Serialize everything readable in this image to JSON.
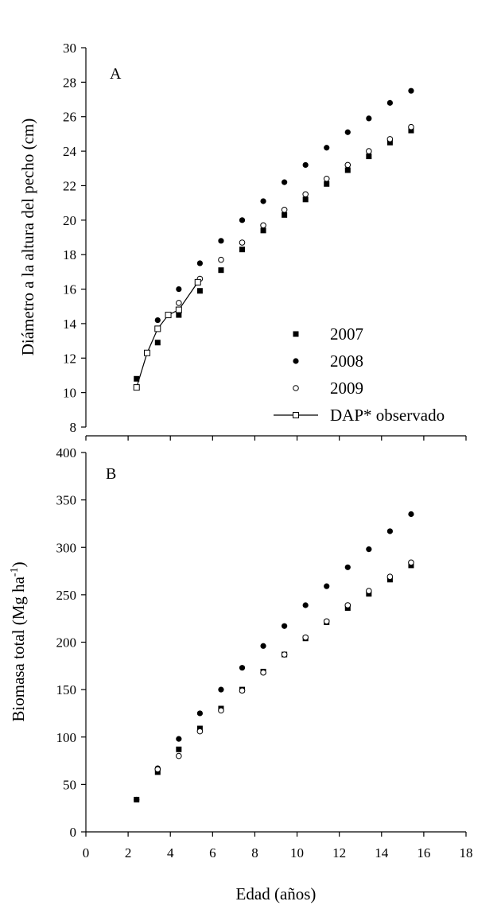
{
  "chart_data": [
    {
      "panel": "A",
      "type": "scatter",
      "ylabel": "Diámetro a la altura del pecho (cm)",
      "xlim": [
        0,
        18
      ],
      "ylim": [
        8,
        30
      ],
      "yticks": [
        8,
        10,
        12,
        14,
        16,
        18,
        20,
        22,
        24,
        26,
        28,
        30
      ],
      "legend": {
        "position": "bottom-right"
      },
      "series": [
        {
          "name": "2007",
          "marker": "square-filled",
          "x": [
            2.4,
            3.4,
            4.4,
            5.4,
            6.4,
            7.4,
            8.4,
            9.4,
            10.4,
            11.4,
            12.4,
            13.4,
            14.4,
            15.4
          ],
          "y": [
            10.8,
            12.9,
            14.5,
            15.9,
            17.1,
            18.3,
            19.4,
            20.3,
            21.2,
            22.1,
            22.9,
            23.7,
            24.5,
            25.2
          ]
        },
        {
          "name": "2008",
          "marker": "circle-filled",
          "x": [
            3.4,
            4.4,
            5.4,
            6.4,
            7.4,
            8.4,
            9.4,
            10.4,
            11.4,
            12.4,
            13.4,
            14.4,
            15.4
          ],
          "y": [
            14.2,
            16.0,
            17.5,
            18.8,
            20.0,
            21.1,
            22.2,
            23.2,
            24.2,
            25.1,
            25.9,
            26.8,
            27.5
          ]
        },
        {
          "name": "2009",
          "marker": "circle-open",
          "x": [
            4.4,
            5.4,
            6.4,
            7.4,
            8.4,
            9.4,
            10.4,
            11.4,
            12.4,
            13.4,
            14.4,
            15.4
          ],
          "y": [
            15.2,
            16.6,
            17.7,
            18.7,
            19.7,
            20.6,
            21.5,
            22.4,
            23.2,
            24.0,
            24.7,
            25.4
          ]
        },
        {
          "name": "DAP* observado",
          "marker": "square-open",
          "line": true,
          "x": [
            2.4,
            2.9,
            3.4,
            3.9,
            4.4,
            5.3
          ],
          "y": [
            10.3,
            12.3,
            13.7,
            14.5,
            14.8,
            16.4
          ]
        }
      ]
    },
    {
      "panel": "B",
      "type": "scatter",
      "ylabel_main": "Biomasa total (Mg ha",
      "ylabel_sup": "-1",
      "ylabel_end": ")",
      "xlabel": "Edad (años)",
      "xlim": [
        0,
        18
      ],
      "ylim": [
        0,
        400
      ],
      "xticks": [
        0,
        2,
        4,
        6,
        8,
        10,
        12,
        14,
        16,
        18
      ],
      "yticks": [
        0,
        50,
        100,
        150,
        200,
        250,
        300,
        350,
        400
      ],
      "series": [
        {
          "name": "2007",
          "marker": "square-filled",
          "x": [
            2.4,
            3.4,
            4.4,
            5.4,
            6.4,
            7.4,
            8.4,
            9.4,
            10.4,
            11.4,
            12.4,
            13.4,
            14.4,
            15.4
          ],
          "y": [
            34,
            63,
            87,
            109,
            130,
            150,
            169,
            187,
            204,
            221,
            236,
            251,
            266,
            281
          ]
        },
        {
          "name": "2008",
          "marker": "circle-filled",
          "x": [
            2.4,
            3.4,
            4.4,
            5.4,
            6.4,
            7.4,
            8.4,
            9.4,
            10.4,
            11.4,
            12.4,
            13.4,
            14.4,
            15.4
          ],
          "y": [
            34,
            67,
            98,
            125,
            150,
            173,
            196,
            217,
            239,
            259,
            279,
            298,
            317,
            335
          ]
        },
        {
          "name": "2009",
          "marker": "circle-open",
          "x": [
            3.4,
            4.4,
            5.4,
            6.4,
            7.4,
            8.4,
            9.4,
            10.4,
            11.4,
            12.4,
            13.4,
            14.4,
            15.4
          ],
          "y": [
            66,
            80,
            106,
            128,
            149,
            168,
            187,
            205,
            222,
            239,
            254,
            269,
            284
          ]
        }
      ]
    }
  ]
}
